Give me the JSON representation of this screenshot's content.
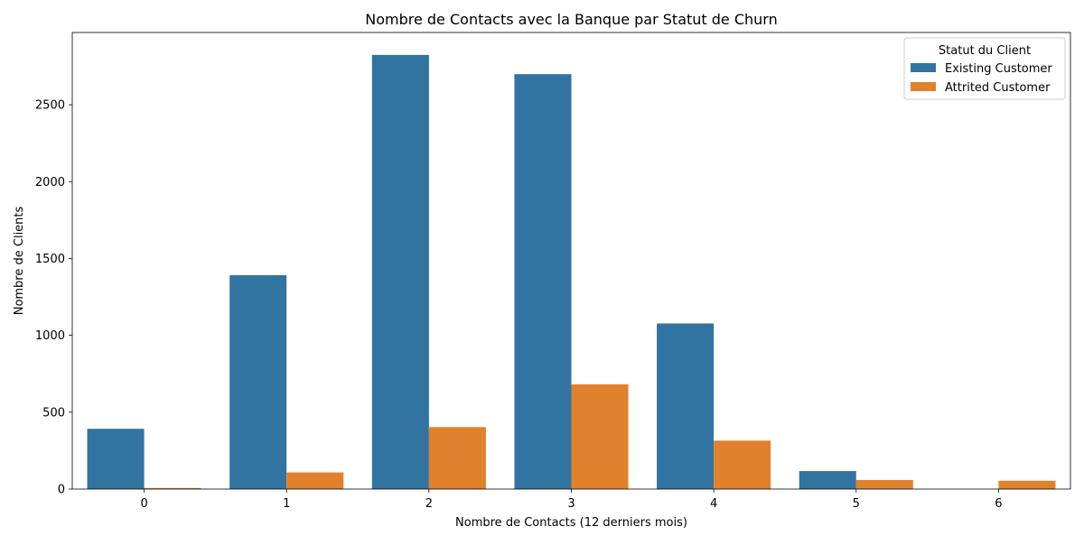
{
  "chart_data": {
    "type": "bar",
    "title": "Nombre de Contacts avec la Banque par Statut de Churn",
    "xlabel": "Nombre de Contacts (12 derniers mois)",
    "ylabel": "Nombre de Clients",
    "categories": [
      "0",
      "1",
      "2",
      "3",
      "4",
      "5",
      "6"
    ],
    "ylim": [
      0,
      2970
    ],
    "yticks": [
      0,
      500,
      1000,
      1500,
      2000,
      2500
    ],
    "ytick_labels": [
      "0",
      "500",
      "1000",
      "1500",
      "2000",
      "2500"
    ],
    "grid": false,
    "legend": {
      "title": "Statut du Client",
      "placement": "top-right"
    },
    "series": [
      {
        "name": "Existing Customer",
        "color": "#3274a1",
        "values": [
          392,
          1391,
          2824,
          2699,
          1077,
          117,
          0
        ]
      },
      {
        "name": "Attrited Customer",
        "color": "#e1812c",
        "values": [
          7,
          108,
          403,
          681,
          315,
          59,
          54
        ]
      }
    ]
  }
}
